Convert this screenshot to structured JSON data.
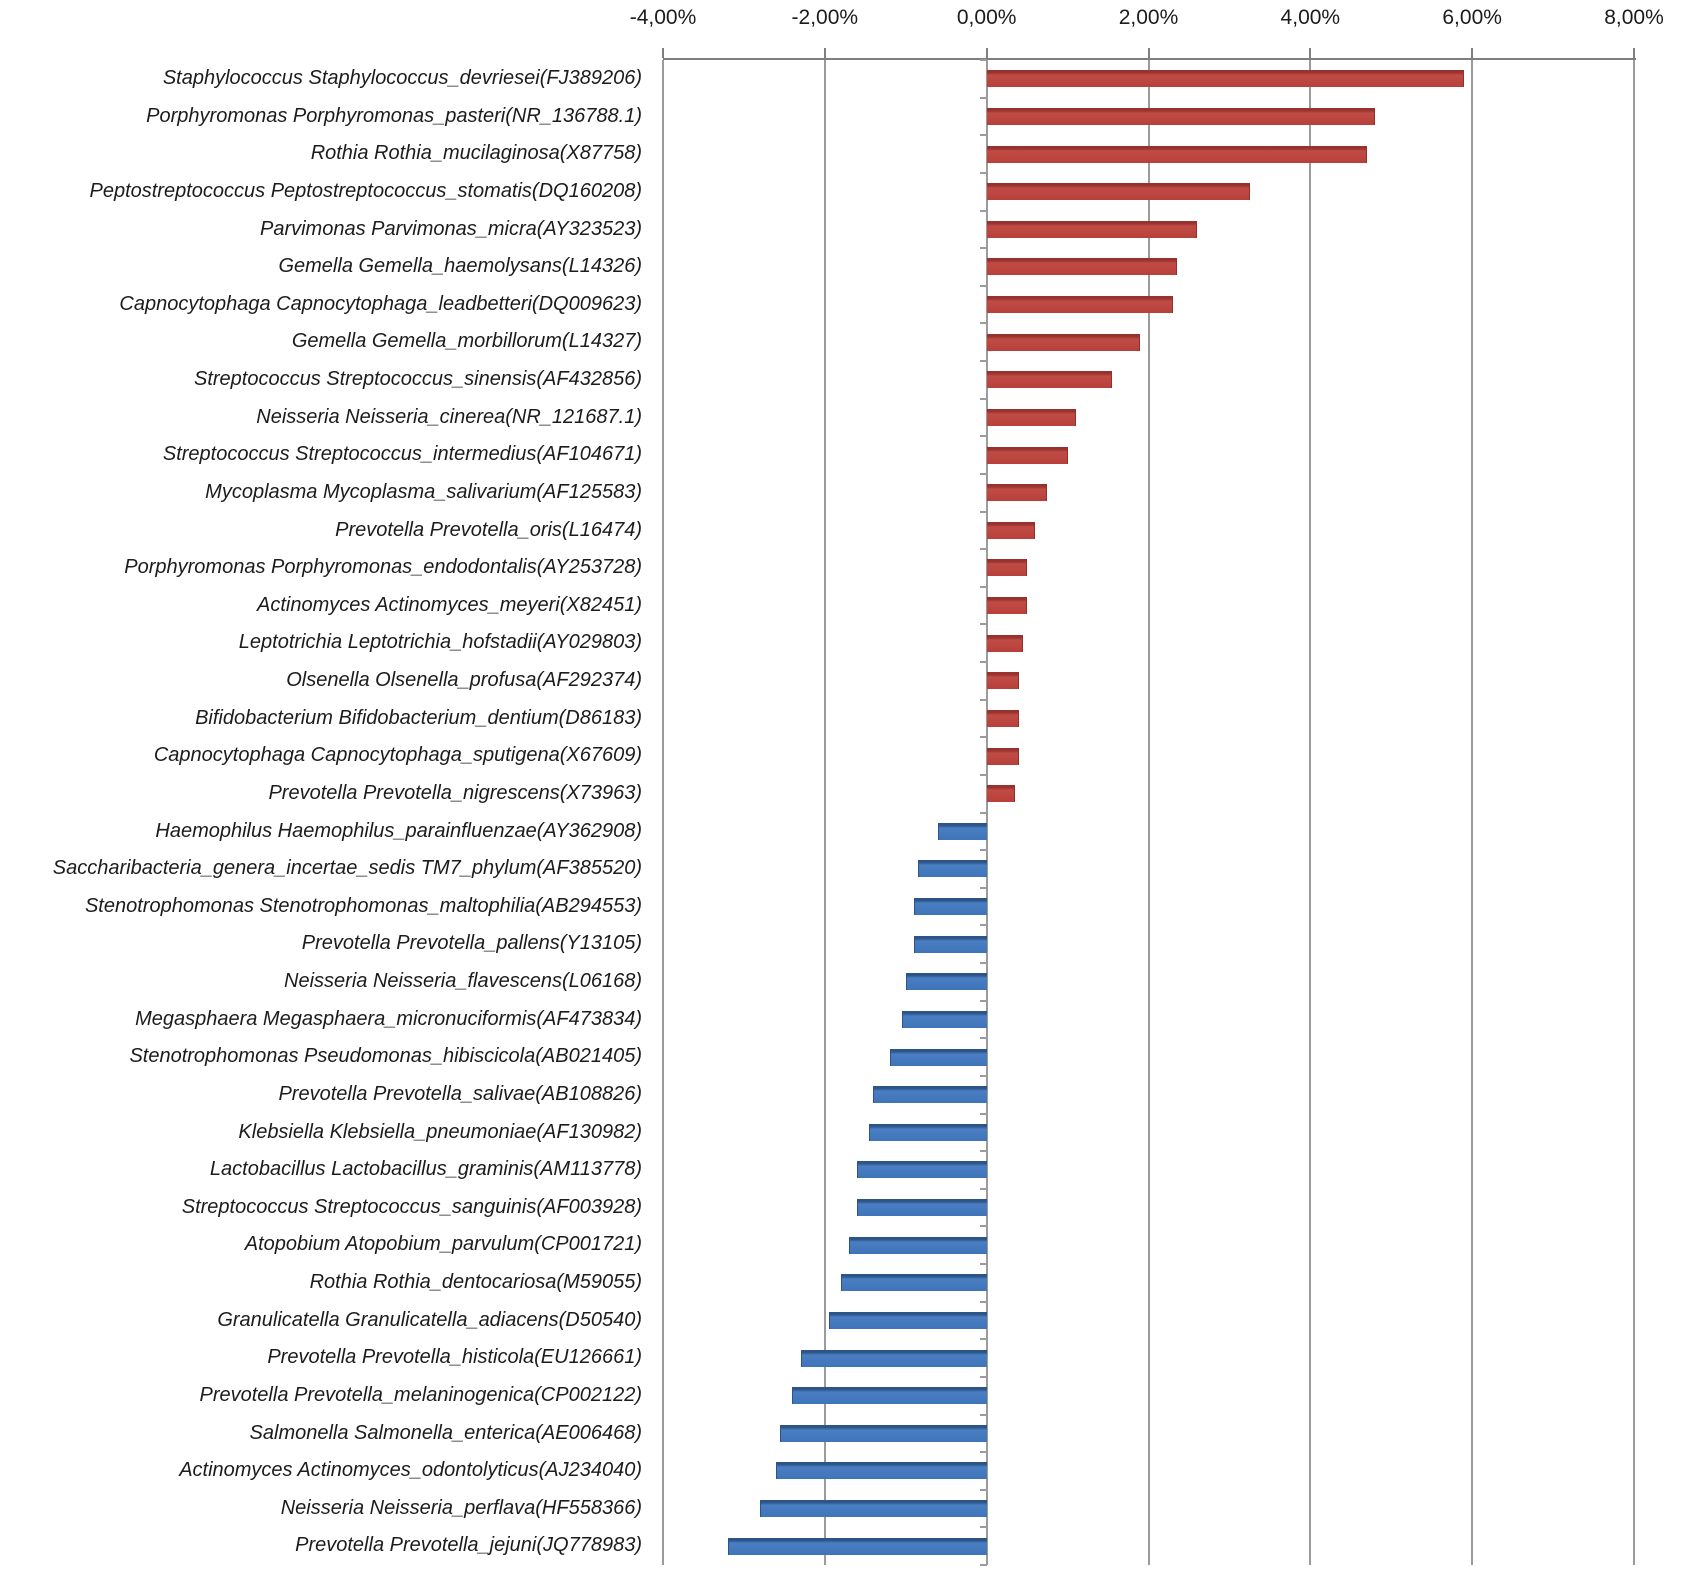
{
  "chart_data": {
    "type": "bar",
    "orientation": "horizontal",
    "title": "",
    "xlabel": "",
    "ylabel": "",
    "x_axis": {
      "tick_labels": [
        "-4,00%",
        "-2,00%",
        "0,00%",
        "2,00%",
        "4,00%",
        "6,00%",
        "8,00%"
      ],
      "tick_values": [
        -4,
        -2,
        0,
        2,
        4,
        6,
        8
      ],
      "min": -4,
      "max": 8,
      "unit": "percent",
      "decimal_separator": ",",
      "position": "top"
    },
    "grid": true,
    "legend": false,
    "categories": [
      "Staphylococcus Staphylococcus_devriesei(FJ389206)",
      "Porphyromonas Porphyromonas_pasteri(NR_136788.1)",
      "Rothia Rothia_mucilaginosa(X87758)",
      "Peptostreptococcus Peptostreptococcus_stomatis(DQ160208)",
      "Parvimonas Parvimonas_micra(AY323523)",
      "Gemella Gemella_haemolysans(L14326)",
      "Capnocytophaga Capnocytophaga_leadbetteri(DQ009623)",
      "Gemella Gemella_morbillorum(L14327)",
      "Streptococcus Streptococcus_sinensis(AF432856)",
      "Neisseria Neisseria_cinerea(NR_121687.1)",
      "Streptococcus Streptococcus_intermedius(AF104671)",
      "Mycoplasma Mycoplasma_salivarium(AF125583)",
      "Prevotella Prevotella_oris(L16474)",
      "Porphyromonas Porphyromonas_endodontalis(AY253728)",
      "Actinomyces Actinomyces_meyeri(X82451)",
      "Leptotrichia Leptotrichia_hofstadii(AY029803)",
      "Olsenella Olsenella_profusa(AF292374)",
      "Bifidobacterium Bifidobacterium_dentium(D86183)",
      "Capnocytophaga Capnocytophaga_sputigena(X67609)",
      "Prevotella Prevotella_nigrescens(X73963)",
      "Haemophilus Haemophilus_parainfluenzae(AY362908)",
      "Saccharibacteria_genera_incertae_sedis TM7_phylum(AF385520)",
      "Stenotrophomonas Stenotrophomonas_maltophilia(AB294553)",
      "Prevotella Prevotella_pallens(Y13105)",
      "Neisseria Neisseria_flavescens(L06168)",
      "Megasphaera Megasphaera_micronuciformis(AF473834)",
      "Stenotrophomonas Pseudomonas_hibiscicola(AB021405)",
      "Prevotella Prevotella_salivae(AB108826)",
      "Klebsiella Klebsiella_pneumoniae(AF130982)",
      "Lactobacillus Lactobacillus_graminis(AM113778)",
      "Streptococcus Streptococcus_sanguinis(AF003928)",
      "Atopobium Atopobium_parvulum(CP001721)",
      "Rothia Rothia_dentocariosa(M59055)",
      "Granulicatella Granulicatella_adiacens(D50540)",
      "Prevotella Prevotella_histicola(EU126661)",
      "Prevotella Prevotella_melaninogenica(CP002122)",
      "Salmonella Salmonella_enterica(AE006468)",
      "Actinomyces Actinomyces_odontolyticus(AJ234040)",
      "Neisseria Neisseria_perflava(HF558366)",
      "Prevotella Prevotella_jejuni(JQ778983)"
    ],
    "values": [
      5.9,
      4.8,
      4.7,
      3.25,
      2.6,
      2.35,
      2.3,
      1.9,
      1.55,
      1.1,
      1.0,
      0.75,
      0.6,
      0.5,
      0.5,
      0.45,
      0.4,
      0.4,
      0.4,
      0.35,
      -0.6,
      -0.85,
      -0.9,
      -0.9,
      -1.0,
      -1.05,
      -1.2,
      -1.4,
      -1.45,
      -1.6,
      -1.6,
      -1.7,
      -1.8,
      -1.95,
      -2.3,
      -2.4,
      -2.55,
      -2.6,
      -2.8,
      -3.2
    ],
    "positive_color": "#b83f3a",
    "negative_color": "#3f74b8",
    "gridline_color": "#9b9b9b",
    "axis_color": "#7f7f7f"
  }
}
